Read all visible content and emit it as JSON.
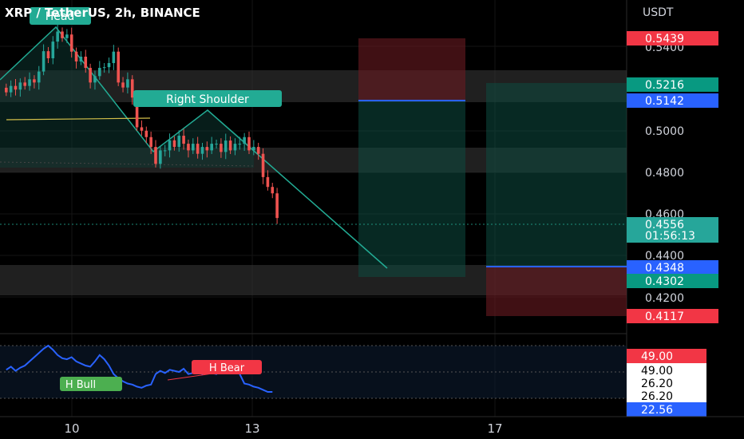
{
  "header": {
    "title": "XRP / TetherUS, 2h, BINANCE"
  },
  "price_axis": {
    "currency": "USDT",
    "ticks": [
      "0.5400",
      "0.5000",
      "0.4800",
      "0.4600",
      "0.4400",
      "0.4200"
    ]
  },
  "price_tags": [
    {
      "text": "0.5439",
      "kind": "red"
    },
    {
      "text": "0.5216",
      "kind": "green"
    },
    {
      "text": "0.5142",
      "kind": "blue"
    },
    {
      "text": "0.4556",
      "kind": "current"
    },
    {
      "text": "01:56:13",
      "kind": "current"
    },
    {
      "text": "0.4348",
      "kind": "blue"
    },
    {
      "text": "0.4302",
      "kind": "green"
    },
    {
      "text": "0.4117",
      "kind": "red"
    }
  ],
  "rsi_tags": [
    {
      "text": "49.00",
      "kind": "red"
    },
    {
      "text": "49.00",
      "kind": "white"
    },
    {
      "text": "26.20",
      "kind": "white"
    },
    {
      "text": "26.20",
      "kind": "white"
    },
    {
      "text": "22.56",
      "kind": "blue"
    }
  ],
  "annotations": {
    "head": "Head",
    "right_shoulder": "Right Shoulder",
    "h_bull": "H Bull",
    "h_bear": "H Bear"
  },
  "time_axis": [
    "10",
    "13",
    "17"
  ],
  "colors": {
    "up": "#26a69a",
    "down": "#ef5350",
    "rsi": "#2962ff",
    "accent_green": "#22ab94",
    "accent_red": "#f23645"
  },
  "chart_data": {
    "type": "candlestick",
    "title": "XRP / TetherUS, 2h, BINANCE",
    "ylabel": "USDT",
    "ylim": [
      0.405,
      0.551
    ],
    "closes": [
      0.5106,
      0.5134,
      0.5118,
      0.5149,
      0.5134,
      0.5163,
      0.5149,
      0.5197,
      0.5286,
      0.5255,
      0.5328,
      0.5372,
      0.5343,
      0.5359,
      0.5284,
      0.5241,
      0.5262,
      0.5213,
      0.5149,
      0.5177,
      0.5213,
      0.5216,
      0.5234,
      0.5284,
      0.5149,
      0.5127,
      0.5163,
      0.5083,
      0.4953,
      0.4938,
      0.491,
      0.4867,
      0.4793,
      0.4852,
      0.4852,
      0.4896,
      0.4867,
      0.4916,
      0.4881,
      0.4852,
      0.4881,
      0.4837,
      0.4867,
      0.4852,
      0.4881,
      0.4881,
      0.4845,
      0.4895,
      0.4852,
      0.4881,
      0.4881,
      0.491,
      0.4852,
      0.4867,
      0.4837,
      0.4735,
      0.4692,
      0.4664,
      0.4556
    ],
    "rsi": {
      "levels": [
        49.0,
        26.2
      ],
      "current": 22.56
    }
  }
}
